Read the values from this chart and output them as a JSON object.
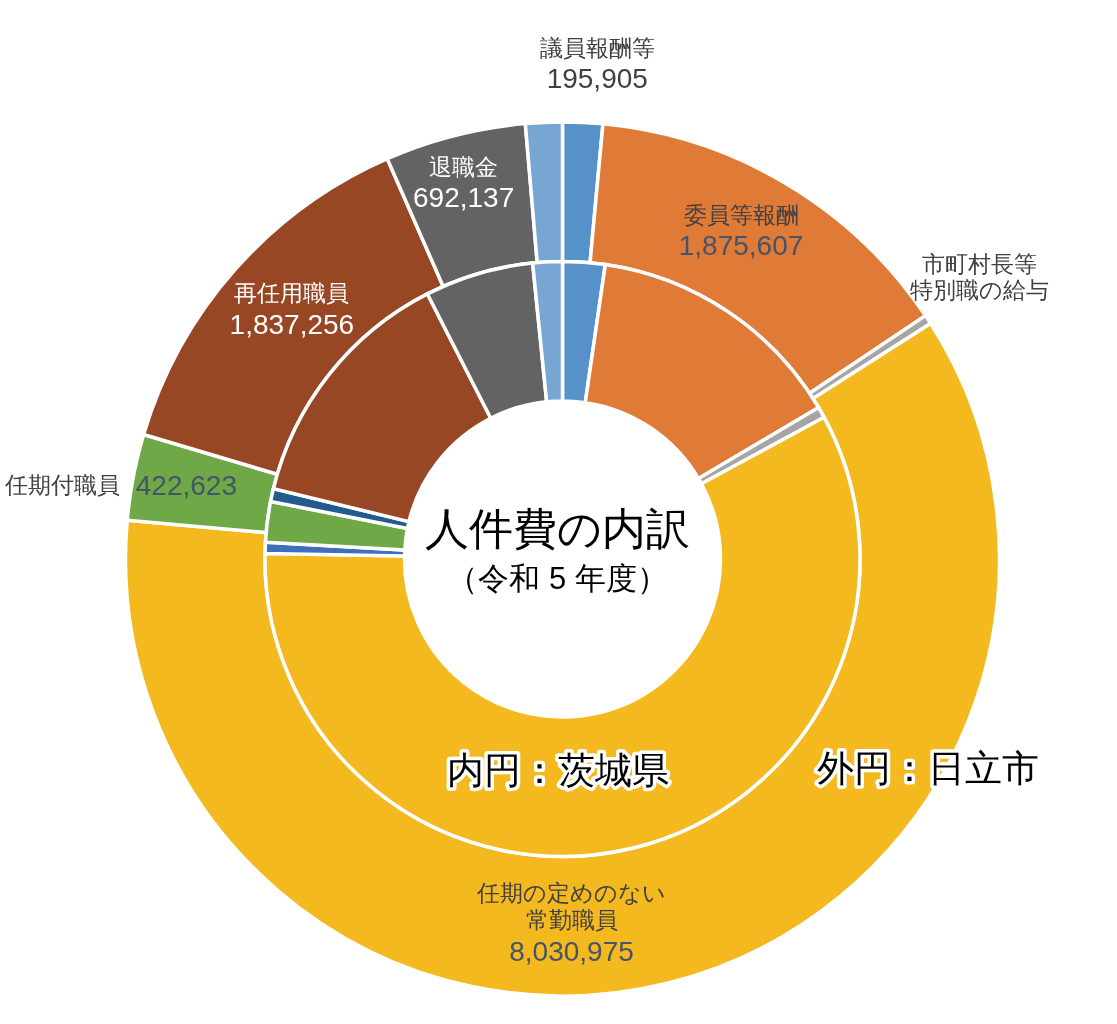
{
  "chart_data": {
    "type": "donut",
    "title": "人件費の内訳",
    "subtitle": "（令和 5 年度）",
    "categories": [
      "議員報酬等",
      "委員等報酬",
      "市町村長等特別職の給与",
      "任期の定めのない常勤職員",
      null,
      "任期付職員",
      null,
      "再任用職員",
      "退職金",
      null
    ],
    "colors": [
      "#5692c9",
      "#e07a37",
      "#a5a5a5",
      "#f3b91f",
      "#3f6fba",
      "#6fa846",
      "#245b8e",
      "#974724",
      "#636363",
      "#78a6d3"
    ],
    "series": [
      {
        "name": "外円：日立市",
        "values": [
          195905,
          1875607,
          45000,
          8030975,
          null,
          422623,
          null,
          1837256,
          692137,
          180000
        ],
        "value_labels": [
          "195,905",
          "1,875,607",
          null,
          "8,030,975",
          null,
          "422,623",
          null,
          "1,837,256",
          "692,137",
          null
        ]
      },
      {
        "name": "内円：茨城県",
        "values": [
          2.3,
          14.2,
          0.6,
          58.2,
          0.6,
          2.2,
          0.7,
          13.7,
          5.9,
          1.6
        ]
      }
    ]
  }
}
